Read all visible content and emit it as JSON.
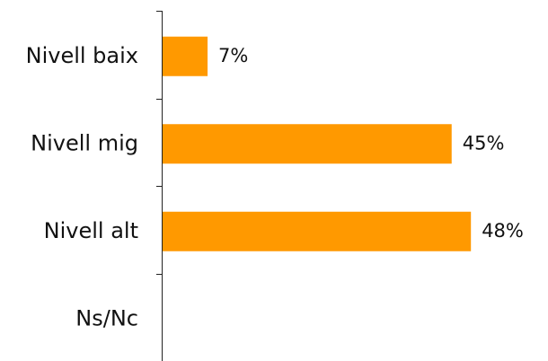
{
  "chart_data": {
    "type": "bar",
    "orientation": "horizontal",
    "categories": [
      "Nivell baix",
      "Nivell mig",
      "Nivell alt",
      "Ns/Nc"
    ],
    "values": [
      7,
      45,
      48,
      null
    ],
    "value_labels": [
      "7%",
      "45%",
      "48%",
      ""
    ],
    "title": "",
    "xlabel": "",
    "ylabel": "",
    "xlim": [
      0,
      50
    ],
    "grid": false,
    "legend": "none",
    "bar_color": "#FF9900"
  }
}
